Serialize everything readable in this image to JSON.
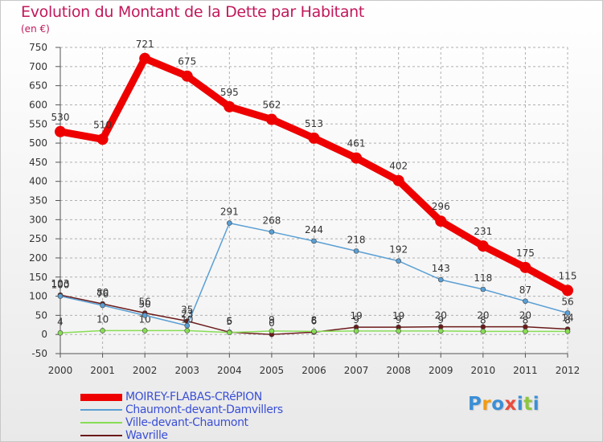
{
  "title": "Evolution du Montant de la Dette par Habitant",
  "subtitle": "(en €)",
  "logo": {
    "text": "Proxiti",
    "letters": [
      {
        "ch": "P",
        "color": "#3b8fd6"
      },
      {
        "ch": "r",
        "color": "#f39c12"
      },
      {
        "ch": "o",
        "color": "#3b8fd6"
      },
      {
        "ch": "x",
        "color": "#e84c3d"
      },
      {
        "ch": "i",
        "color": "#3b8fd6"
      },
      {
        "ch": "t",
        "color": "#8cc63f"
      },
      {
        "ch": "i",
        "color": "#3b8fd6"
      }
    ]
  },
  "chart_data": {
    "type": "line",
    "x": [
      "2000",
      "2001",
      "2002",
      "2003",
      "2004",
      "2005",
      "2006",
      "2007",
      "2008",
      "2009",
      "2010",
      "2011",
      "2012"
    ],
    "ylim": [
      -50,
      750
    ],
    "yticks": [
      -50,
      0,
      50,
      100,
      150,
      200,
      250,
      300,
      350,
      400,
      450,
      500,
      550,
      600,
      650,
      700,
      750
    ],
    "grid": true,
    "legend_position": "bottom",
    "series": [
      {
        "name": "MOIREY-FLABAS-CRéPION",
        "color": "#ee0000",
        "values": [
          530,
          510,
          721,
          675,
          595,
          562,
          513,
          461,
          402,
          296,
          231,
          175,
          115
        ],
        "labels": [
          "530",
          "510",
          "721",
          "675",
          "595",
          "562",
          "513",
          "461",
          "402",
          "296",
          "231",
          "175",
          "115"
        ]
      },
      {
        "name": "Chaumont-devant-Damvillers",
        "color": "#5a9fd4",
        "values": [
          100,
          76,
          50,
          23,
          291,
          268,
          244,
          218,
          192,
          143,
          118,
          87,
          56
        ],
        "labels": [
          "100",
          "76",
          "50",
          "23",
          "291",
          "268",
          "244",
          "218",
          "192",
          "143",
          "118",
          "87",
          "56"
        ]
      },
      {
        "name": "Ville-devant-Chaumont",
        "color": "#88dd55",
        "values": [
          4,
          10,
          10,
          10,
          5,
          9,
          8,
          9,
          9,
          9,
          8,
          8,
          8
        ],
        "labels": [
          "4",
          "10",
          "10",
          "10",
          "5",
          "9",
          "8",
          "9",
          "9",
          "9",
          "8",
          "8",
          "8"
        ]
      },
      {
        "name": "Wavrille",
        "color": "#6b1a1a",
        "values": [
          103,
          80,
          56,
          35,
          6,
          0,
          6,
          19,
          19,
          20,
          20,
          20,
          14
        ],
        "labels": [
          "103",
          "80",
          "56",
          "35",
          "6",
          "0",
          "6",
          "19",
          "19",
          "20",
          "20",
          "20",
          "14"
        ]
      }
    ]
  }
}
